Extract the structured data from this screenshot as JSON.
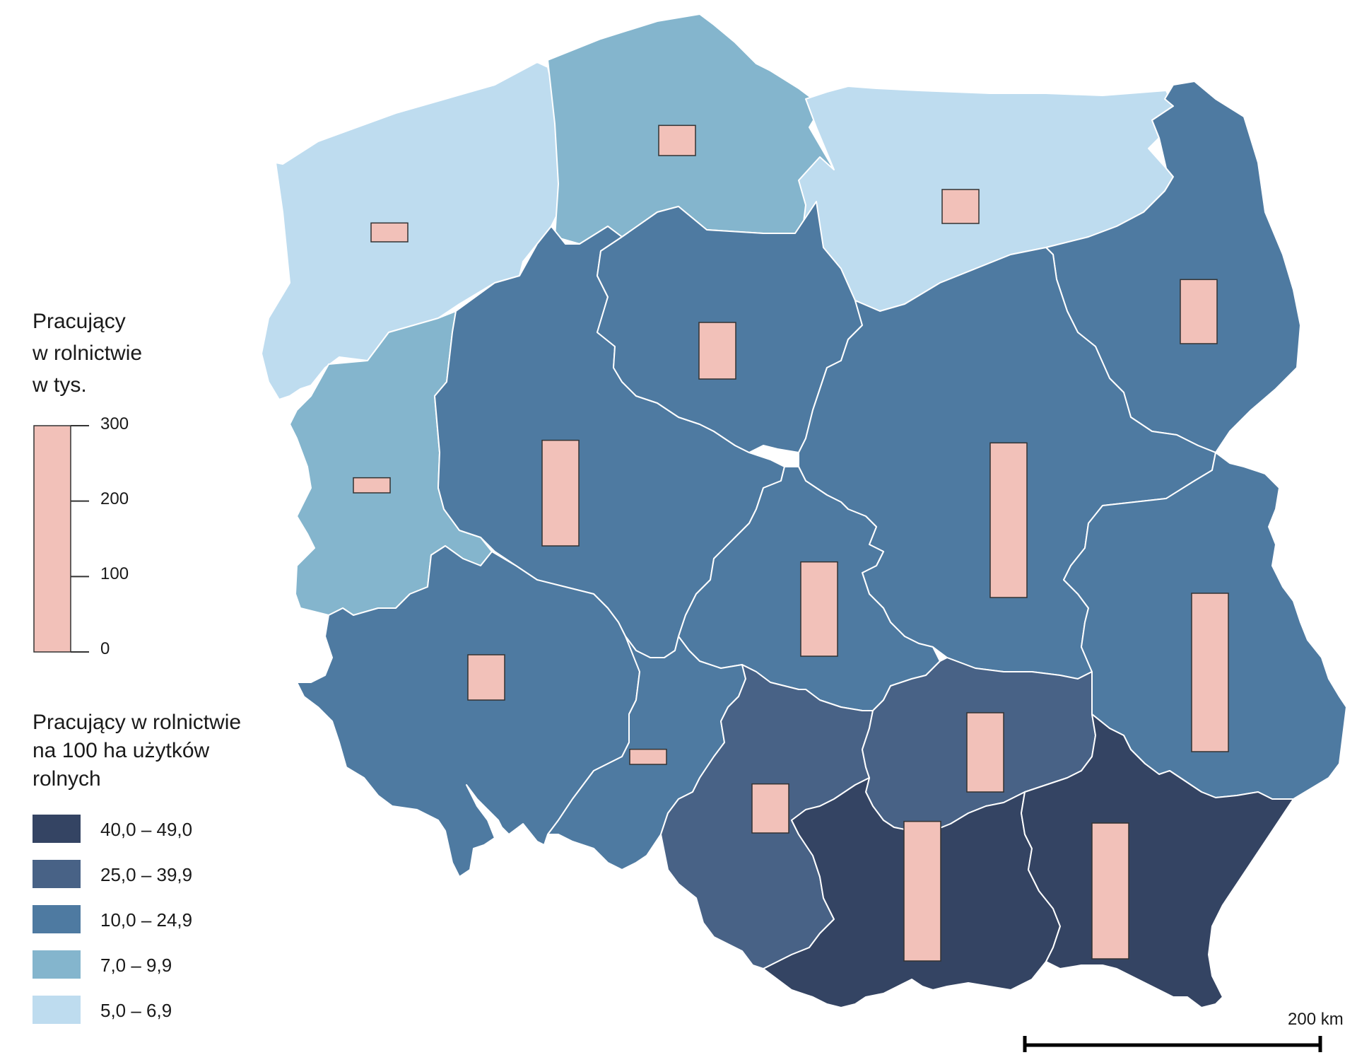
{
  "legend_bars": {
    "title": "Pracujący\nw rolnictwie\nw tys.",
    "ticks": [
      "300",
      "200",
      "100",
      "0"
    ]
  },
  "legend_classes": {
    "title": "Pracujący w rolnictwie\nna 100 ha użytków\nrolnych",
    "items": [
      {
        "label": "40,0 – 49,0",
        "color": "#344463"
      },
      {
        "label": "25,0 – 39,9",
        "color": "#486286"
      },
      {
        "label": "10,0 – 24,9",
        "color": "#4e7aa1"
      },
      {
        "label": "7,0 – 9,9",
        "color": "#84b5cd"
      },
      {
        "label": "5,0 – 6,9",
        "color": "#bedcef"
      }
    ]
  },
  "scale_bar": {
    "label": "200 km"
  },
  "colors": {
    "bar_fill": "#f2c1b9",
    "bar_stroke": "#333333",
    "border": "#ffffff",
    "sea": "#ffffff"
  },
  "regions": [
    {
      "id": "zachodniopomorskie",
      "class": "5,0 – 6,9",
      "workers_thousands": 25
    },
    {
      "id": "pomorskie",
      "class": "7,0 – 9,9",
      "workers_thousands": 40
    },
    {
      "id": "warminsko-mazurskie",
      "class": "5,0 – 6,9",
      "workers_thousands": 45
    },
    {
      "id": "podlaskie",
      "class": "10,0 – 24,9",
      "workers_thousands": 85
    },
    {
      "id": "lubuskie",
      "class": "7,0 – 9,9",
      "workers_thousands": 20
    },
    {
      "id": "wielkopolskie",
      "class": "10,0 – 24,9",
      "workers_thousands": 140
    },
    {
      "id": "kujawsko-pomorskie",
      "class": "10,0 – 24,9",
      "workers_thousands": 75
    },
    {
      "id": "mazowieckie",
      "class": "10,0 – 24,9",
      "workers_thousands": 205
    },
    {
      "id": "lodzkie",
      "class": "10,0 – 24,9",
      "workers_thousands": 125
    },
    {
      "id": "lubelskie",
      "class": "10,0 – 24,9",
      "workers_thousands": 210
    },
    {
      "id": "dolnoslaskie",
      "class": "10,0 – 24,9",
      "workers_thousands": 60
    },
    {
      "id": "opolskie",
      "class": "10,0 – 24,9",
      "workers_thousands": 20
    },
    {
      "id": "slaskie",
      "class": "25,0 – 39,9",
      "workers_thousands": 65
    },
    {
      "id": "swietokrzyskie",
      "class": "25,0 – 39,9",
      "workers_thousands": 105
    },
    {
      "id": "malopolskie",
      "class": "40,0 – 49,0",
      "workers_thousands": 185
    },
    {
      "id": "podkarpackie",
      "class": "40,0 – 49,0",
      "workers_thousands": 180
    }
  ]
}
